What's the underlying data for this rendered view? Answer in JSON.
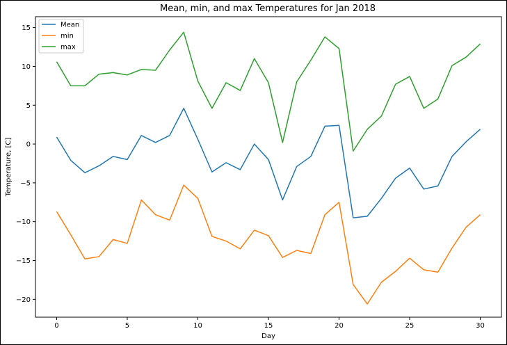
{
  "chart_data": {
    "type": "line",
    "title": "Mean, min, and max Temperatures for Jan 2018",
    "xlabel": "Day",
    "ylabel": "Temperature, [C]",
    "xlim": [
      -1.5,
      31.5
    ],
    "ylim": [
      -22.3,
      16.4
    ],
    "xticks": [
      0,
      5,
      10,
      15,
      20,
      25,
      30
    ],
    "yticks": [
      -20,
      -15,
      -10,
      -5,
      0,
      5,
      10,
      15
    ],
    "grid": false,
    "legend": "top-left",
    "x": [
      0,
      1,
      2,
      3,
      4,
      5,
      6,
      7,
      8,
      9,
      10,
      11,
      12,
      13,
      14,
      15,
      16,
      17,
      18,
      19,
      20,
      21,
      22,
      23,
      24,
      25,
      26,
      27,
      28,
      29,
      30
    ],
    "series": [
      {
        "name": "Mean",
        "color": "#1f77b4",
        "values": [
          0.9,
          -2.1,
          -3.7,
          -2.8,
          -1.6,
          -2.0,
          1.1,
          0.2,
          1.1,
          4.6,
          0.6,
          -3.6,
          -2.4,
          -3.3,
          0.0,
          -2.0,
          -7.2,
          -2.9,
          -1.6,
          2.3,
          2.4,
          -9.5,
          -9.3,
          -7.0,
          -4.4,
          -3.1,
          -5.8,
          -5.4,
          -1.6,
          0.3,
          1.9
        ]
      },
      {
        "name": "min",
        "color": "#ff7f0e",
        "values": [
          -8.7,
          -11.7,
          -14.8,
          -14.5,
          -12.3,
          -12.8,
          -7.2,
          -9.1,
          -9.8,
          -5.3,
          -7.0,
          -11.9,
          -12.5,
          -13.5,
          -11.1,
          -11.8,
          -14.6,
          -13.7,
          -14.1,
          -9.1,
          -7.5,
          -18.1,
          -20.6,
          -17.8,
          -16.4,
          -14.7,
          -16.2,
          -16.5,
          -13.4,
          -10.7,
          -9.1
        ]
      },
      {
        "name": "max",
        "color": "#2ca02c",
        "values": [
          10.6,
          7.5,
          7.5,
          9.0,
          9.2,
          8.9,
          9.6,
          9.5,
          12.1,
          14.4,
          8.1,
          4.6,
          7.9,
          6.9,
          11.0,
          7.9,
          0.2,
          8.0,
          10.8,
          13.8,
          12.3,
          -0.9,
          1.9,
          3.6,
          7.7,
          8.7,
          4.6,
          5.8,
          10.1,
          11.2,
          12.9
        ]
      }
    ]
  }
}
